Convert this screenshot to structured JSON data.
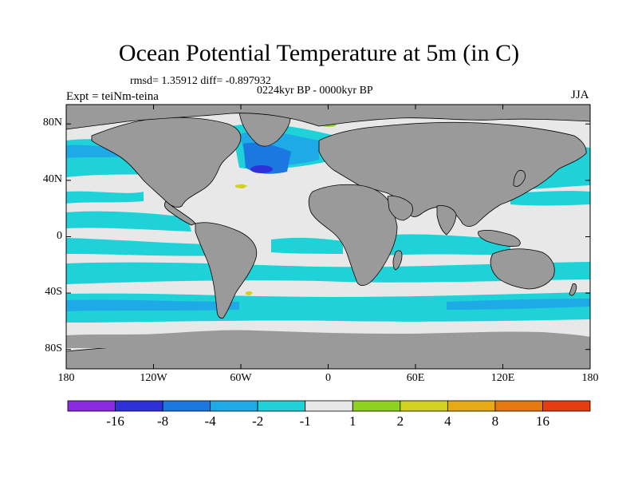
{
  "title": "Ocean Potential Temperature at 5m (in C)",
  "stats": "rmsd= 1.35912  diff= -0.897932",
  "period": "0224kyr BP - 0000kyr BP",
  "expt": "Expt = teiNm-teina",
  "season": "JJA",
  "lat_ticks": [
    {
      "value": 80,
      "label": "80N"
    },
    {
      "value": 40,
      "label": "40N"
    },
    {
      "value": 0,
      "label": "0"
    },
    {
      "value": -40,
      "label": "40S"
    },
    {
      "value": -80,
      "label": "80S"
    }
  ],
  "lon_ticks": [
    {
      "value": -180,
      "label": "180"
    },
    {
      "value": -120,
      "label": "120W"
    },
    {
      "value": -60,
      "label": "60W"
    },
    {
      "value": 0,
      "label": "0"
    },
    {
      "value": 60,
      "label": "60E"
    },
    {
      "value": 120,
      "label": "120E"
    },
    {
      "value": 180,
      "label": "180"
    }
  ],
  "colorbar": {
    "colors": [
      "#8a2be2",
      "#3030d8",
      "#1a78e0",
      "#1eaae6",
      "#1ed2d8",
      "#e8e8e8",
      "#8cd21e",
      "#d2d21e",
      "#e6aa14",
      "#e6780f",
      "#e63c0f"
    ],
    "labels": [
      "-16",
      "-8",
      "-4",
      "-2",
      "-1",
      "1",
      "2",
      "4",
      "8",
      "16"
    ]
  },
  "colors": {
    "land": "#9a9a9a",
    "neutral": "#e8e8e8",
    "cyan": "#1ed2d8",
    "light_blue": "#1eaae6",
    "mid_blue": "#1a78e0",
    "dark_blue": "#3030d8",
    "green": "#8cd21e",
    "yellow": "#d2d21e"
  }
}
